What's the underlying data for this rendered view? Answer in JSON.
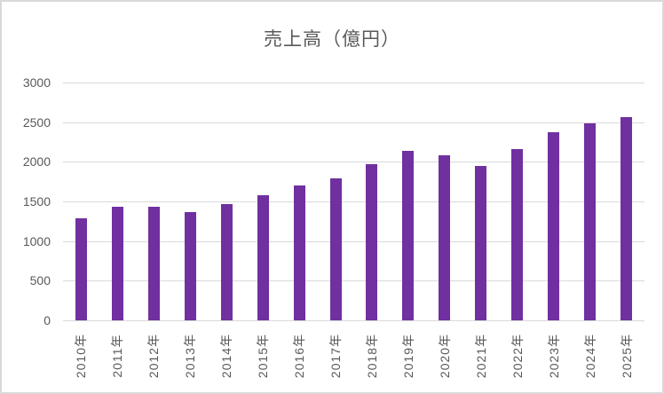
{
  "chart_data": {
    "type": "bar",
    "title": "売上高（億円）",
    "categories": [
      "2010年",
      "2011年",
      "2012年",
      "2013年",
      "2014年",
      "2015年",
      "2016年",
      "2017年",
      "2018年",
      "2019年",
      "2020年",
      "2021年",
      "2022年",
      "2023年",
      "2024年",
      "2025年"
    ],
    "values": [
      1290,
      1430,
      1430,
      1370,
      1470,
      1580,
      1700,
      1790,
      1970,
      2140,
      2080,
      1950,
      2160,
      2370,
      2480,
      2560
    ],
    "xlabel": "",
    "ylabel": "",
    "ylim": [
      0,
      3000
    ],
    "yticks": [
      0,
      500,
      1000,
      1500,
      2000,
      2500,
      3000
    ],
    "grid": true,
    "legend": "none",
    "bar_color": "#7030a0",
    "gridline_color": "#d9d9d9",
    "text_color": "#595959",
    "background_color": "#ffffff",
    "border_color": "#d9d9d9"
  }
}
